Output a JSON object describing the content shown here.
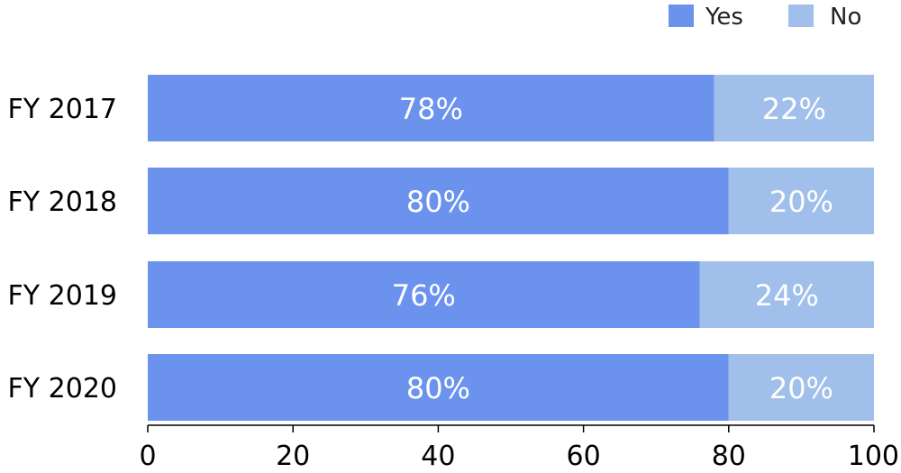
{
  "chart_data": {
    "type": "bar",
    "orientation": "horizontal",
    "stacked": true,
    "categories": [
      "FY 2017",
      "FY 2018",
      "FY 2019",
      "FY 2020"
    ],
    "series": [
      {
        "name": "Yes",
        "values": [
          78,
          80,
          76,
          80
        ],
        "labels": [
          "78%",
          "80%",
          "76%",
          "80%"
        ],
        "color": "#6b93ee"
      },
      {
        "name": "No",
        "values": [
          22,
          20,
          24,
          20
        ],
        "labels": [
          "22%",
          "20%",
          "24%",
          "20%"
        ],
        "color": "#a0bfea"
      }
    ],
    "xlim": [
      0,
      100
    ],
    "xticks": [
      "0",
      "20",
      "40",
      "60",
      "80",
      "100"
    ],
    "grid": false,
    "legend_position": "top-right"
  }
}
